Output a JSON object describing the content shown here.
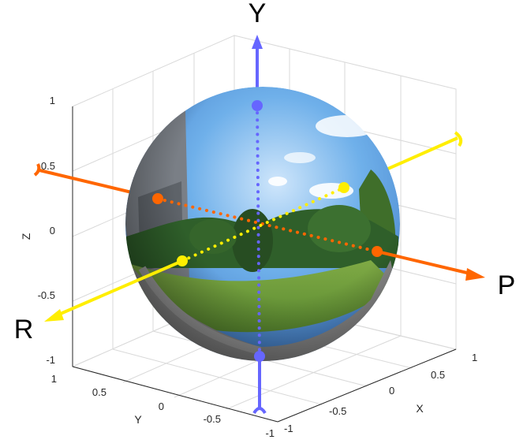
{
  "figure": {
    "x_axis": {
      "label": "X",
      "ticks": [
        "1",
        "0.5",
        "0",
        "-0.5",
        "-1"
      ]
    },
    "y_axis": {
      "label": "Y",
      "ticks": [
        "1",
        "0.5",
        "0",
        "-0.5",
        "-1"
      ]
    },
    "z_axis": {
      "label": "Z",
      "ticks": [
        "1",
        "0.5",
        "0",
        "-0.5",
        "-1"
      ]
    },
    "rotation_axes": {
      "yaw": {
        "label": "Y",
        "color": "#6666ff"
      },
      "pitch": {
        "label": "P",
        "color": "#ff6600"
      },
      "roll": {
        "label": "R",
        "color": "#ffee00"
      }
    },
    "sphere": {
      "content": "equirectangular-panorama",
      "colors": {
        "sky": "#4a8fd6",
        "grass": "#6a9a3a",
        "path": "#8a8a8a"
      }
    }
  }
}
